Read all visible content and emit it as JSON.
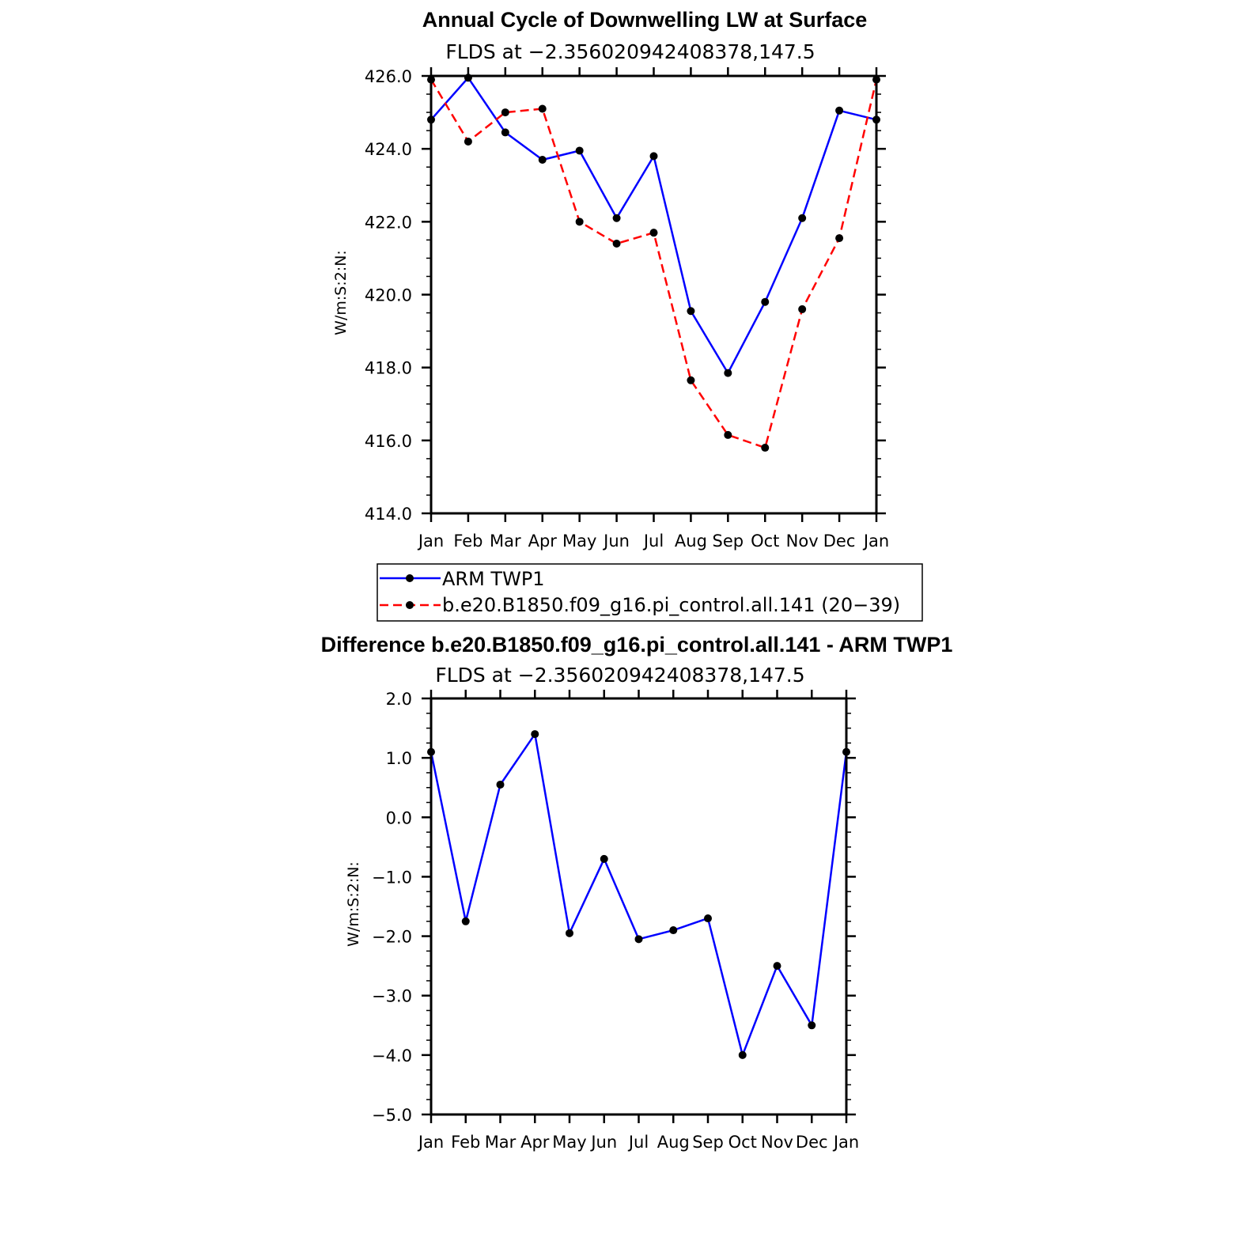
{
  "colors": {
    "obs": "#0000ff",
    "model": "#ff0000",
    "marker": "#000000"
  },
  "legend": {
    "entries": [
      {
        "label": "ARM TWP1",
        "color": "#0000ff",
        "dash": "solid"
      },
      {
        "label": "b.e20.B1850.f09_g16.pi_control.all.141 (20−39)",
        "color": "#ff0000",
        "dash": "dashed"
      }
    ]
  },
  "chart_data": [
    {
      "type": "line",
      "title": "Annual Cycle of Downwelling LW at Surface",
      "subtitle": "FLDS at −2.356020942408378,147.5",
      "ylabel": "W/m:S:2:N:",
      "xlabel": "",
      "categories": [
        "Jan",
        "Feb",
        "Mar",
        "Apr",
        "May",
        "Jun",
        "Jul",
        "Aug",
        "Sep",
        "Oct",
        "Nov",
        "Dec",
        "Jan"
      ],
      "ylim": [
        414.0,
        426.0
      ],
      "yticks": [
        414.0,
        416.0,
        418.0,
        420.0,
        422.0,
        424.0,
        426.0
      ],
      "ytick_labels": [
        "414.0",
        "416.0",
        "418.0",
        "420.0",
        "422.0",
        "424.0",
        "426.0"
      ],
      "series": [
        {
          "name": "ARM TWP1",
          "color": "#0000ff",
          "dash": "solid",
          "values": [
            424.8,
            425.95,
            424.45,
            423.7,
            423.95,
            422.1,
            423.8,
            419.55,
            417.85,
            419.8,
            422.1,
            425.05,
            424.8
          ]
        },
        {
          "name": "b.e20.B1850.f09_g16.pi_control.all.141 (20−39)",
          "color": "#ff0000",
          "dash": "dashed",
          "values": [
            425.9,
            424.2,
            425.0,
            425.1,
            422.0,
            421.4,
            421.7,
            417.65,
            416.15,
            415.8,
            419.6,
            421.55,
            425.9
          ]
        }
      ],
      "grid": false
    },
    {
      "type": "line",
      "title": "Difference b.e20.B1850.f09_g16.pi_control.all.141 - ARM TWP1",
      "subtitle": "FLDS at −2.356020942408378,147.5",
      "ylabel": "W/m:S:2:N:",
      "xlabel": "",
      "categories": [
        "Jan",
        "Feb",
        "Mar",
        "Apr",
        "May",
        "Jun",
        "Jul",
        "Aug",
        "Sep",
        "Oct",
        "Nov",
        "Dec",
        "Jan"
      ],
      "ylim": [
        -5.0,
        2.0
      ],
      "yticks": [
        -5.0,
        -4.0,
        -3.0,
        -2.0,
        -1.0,
        0.0,
        1.0,
        2.0
      ],
      "ytick_labels": [
        "−5.0",
        "−4.0",
        "−3.0",
        "−2.0",
        "−1.0",
        "0.0",
        "1.0",
        "2.0"
      ],
      "series": [
        {
          "color": "#0000ff",
          "dash": "solid",
          "values": [
            1.1,
            -1.75,
            0.55,
            1.4,
            -1.95,
            -0.7,
            -2.05,
            -1.9,
            -1.7,
            -4.0,
            -2.5,
            -3.5,
            1.1
          ]
        }
      ],
      "grid": false
    }
  ]
}
